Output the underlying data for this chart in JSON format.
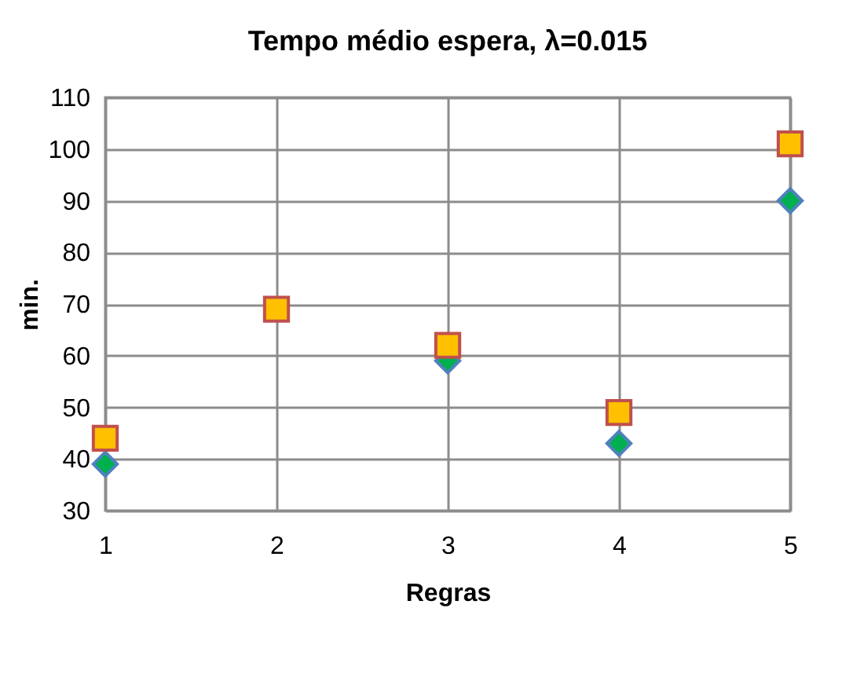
{
  "chart_data": {
    "type": "scatter",
    "title": "Tempo médio espera, λ=0.015",
    "xlabel": "Regras",
    "ylabel": "min.",
    "x": [
      1,
      2,
      3,
      4,
      5
    ],
    "series": [
      {
        "color": "#00b050",
        "marker": "diamond",
        "values": [
          39,
          null,
          59,
          43,
          90
        ]
      },
      {
        "color": "#ffc000",
        "marker": "square",
        "values": [
          44,
          69,
          62,
          49,
          101
        ]
      }
    ],
    "xlim": [
      1,
      5
    ],
    "xticks": [
      1,
      2,
      3,
      4,
      5
    ],
    "ylim": [
      30,
      110
    ],
    "yticks": [
      30,
      40,
      50,
      60,
      70,
      80,
      90,
      100,
      110
    ],
    "grid": true
  }
}
